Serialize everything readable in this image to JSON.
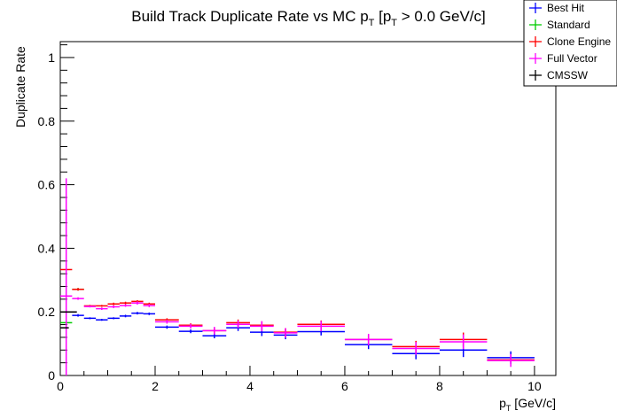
{
  "chart_data": {
    "type": "scatter",
    "title_parts": [
      "Build Track Duplicate Rate vs MC p",
      "T",
      " [p",
      "T",
      " > 0.0 GeV/c]"
    ],
    "xlabel_parts": [
      "p",
      "T",
      " [GeV/c]"
    ],
    "ylabel": "Duplicate Rate",
    "xlim": [
      0,
      10.45
    ],
    "ylim": [
      0,
      1.05
    ],
    "x_ticks": [
      "0",
      "2",
      "4",
      "6",
      "8",
      "10"
    ],
    "y_ticks": [
      "0",
      "0.2",
      "0.4",
      "0.6",
      "0.8",
      "1"
    ],
    "legend_position": "top-right",
    "bin_edges": [
      0,
      0.25,
      0.5,
      0.75,
      1.0,
      1.25,
      1.5,
      1.75,
      2.0,
      2.5,
      3.0,
      3.5,
      4.0,
      4.5,
      5.0,
      6.0,
      7.0,
      8.0,
      9.0,
      10.0
    ],
    "series": [
      {
        "name": "Best Hit",
        "color": "#0000ff",
        "values": [
          null,
          0.189,
          0.18,
          0.175,
          0.18,
          0.187,
          0.196,
          0.194,
          0.152,
          0.139,
          0.125,
          0.15,
          0.136,
          0.127,
          0.138,
          0.097,
          0.069,
          0.08,
          0.056
        ],
        "errors": [
          0,
          0.004,
          0.003,
          0.003,
          0.003,
          0.004,
          0.004,
          0.004,
          0.005,
          0.006,
          0.008,
          0.01,
          0.012,
          0.013,
          0.012,
          0.014,
          0.018,
          0.022,
          0.02
        ]
      },
      {
        "name": "Standard",
        "color": "#00cc00",
        "values": [
          0.166,
          0.271,
          null,
          null,
          null,
          null,
          null,
          null,
          null,
          null,
          null,
          null,
          null,
          null,
          null,
          null,
          null,
          null,
          null
        ],
        "errors": [
          0,
          0.004,
          0,
          0,
          0,
          0,
          0,
          0,
          0,
          0,
          0,
          0,
          0,
          0,
          0,
          0,
          0,
          0,
          0
        ]
      },
      {
        "name": "Clone Engine",
        "color": "#ff0000",
        "values": [
          0.333,
          0.271,
          0.219,
          0.219,
          0.225,
          0.228,
          0.233,
          0.225,
          0.175,
          0.158,
          0.141,
          0.166,
          0.158,
          0.136,
          0.161,
          0.113,
          0.091,
          0.113,
          0.049
        ],
        "errors": [
          0,
          0.004,
          0.003,
          0.003,
          0.004,
          0.004,
          0.004,
          0.004,
          0.005,
          0.006,
          0.008,
          0.01,
          0.012,
          0.013,
          0.012,
          0.014,
          0.018,
          0.022,
          0.008
        ]
      },
      {
        "name": "Full Vector",
        "color": "#ff00ff",
        "values": [
          0.25,
          0.242,
          0.217,
          0.21,
          0.216,
          0.22,
          0.228,
          0.22,
          0.169,
          0.155,
          0.141,
          0.161,
          0.155,
          0.134,
          0.155,
          0.113,
          0.085,
          0.106,
          0.047
        ],
        "errors": [
          0.37,
          0.004,
          0.003,
          0.004,
          0.004,
          0.004,
          0.005,
          0.005,
          0.006,
          0.007,
          0.012,
          0.012,
          0.016,
          0.015,
          0.016,
          0.018,
          0.02,
          0.023,
          0.02
        ]
      },
      {
        "name": "CMSSW",
        "color": "#000000",
        "points": [
          {
            "low": 0.0,
            "high": 0.35,
            "value": 0.2
          },
          {
            "low": 0.0,
            "high": 0.18,
            "value": 0.15
          }
        ]
      }
    ]
  }
}
